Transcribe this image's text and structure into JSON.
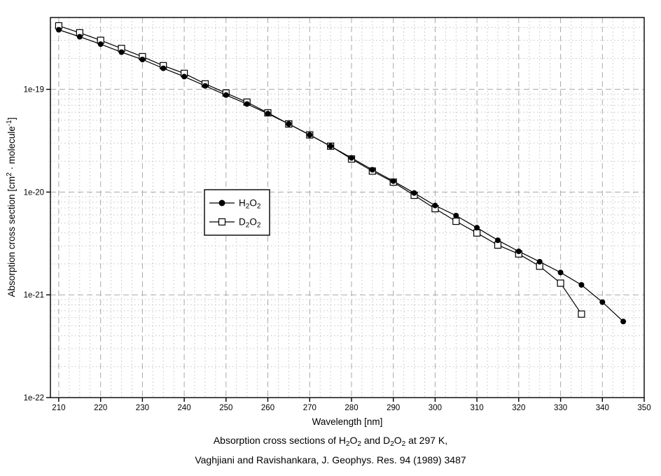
{
  "chart_data": {
    "type": "line",
    "xlabel": "Wavelength [nm]",
    "ylabel_segments": [
      {
        "t": "Absorption cross section [cm"
      },
      {
        "t": "2",
        "sup": true
      },
      {
        "t": " · molecule"
      },
      {
        "t": "-1",
        "sup": true
      },
      {
        "t": "]"
      }
    ],
    "axes": {
      "xlim": [
        208,
        350
      ],
      "ylim": [
        1e-22,
        5e-19
      ],
      "y_scale": "log",
      "x_major_step": 10,
      "x_minor_step": 2.5,
      "x_ticks": [
        210,
        220,
        230,
        240,
        250,
        260,
        270,
        280,
        290,
        300,
        310,
        320,
        330,
        340,
        350
      ],
      "y_ticks": [
        {
          "value": 1e-22,
          "label": "1e-22"
        },
        {
          "value": 1e-21,
          "label": "1e-21"
        },
        {
          "value": 1e-20,
          "label": "1e-20"
        },
        {
          "value": 1e-19,
          "label": "1e-19"
        }
      ],
      "grid": {
        "major": true,
        "minor": true
      }
    },
    "colors": {
      "series": "#000000",
      "major_grid": "#a8a8a8",
      "minor_grid": "#c2c2c2",
      "background": "#ffffff"
    },
    "legend": {
      "position": "inside-left",
      "entries": [
        {
          "id": "h2o2",
          "marker": "filled-circle",
          "label_segments": [
            {
              "t": "H"
            },
            {
              "t": "2",
              "sub": true
            },
            {
              "t": "O"
            },
            {
              "t": "2",
              "sub": true
            }
          ]
        },
        {
          "id": "d2o2",
          "marker": "open-square",
          "label_segments": [
            {
              "t": "D"
            },
            {
              "t": "2",
              "sub": true
            },
            {
              "t": "O"
            },
            {
              "t": "2",
              "sub": true
            }
          ]
        }
      ]
    },
    "series": [
      {
        "id": "h2o2",
        "name": "H2O2",
        "marker": "filled-circle",
        "x": [
          210,
          215,
          220,
          225,
          230,
          235,
          240,
          245,
          250,
          255,
          260,
          265,
          270,
          275,
          280,
          285,
          290,
          295,
          300,
          305,
          310,
          315,
          320,
          325,
          330,
          335,
          340,
          345
        ],
        "y": [
          3.8e-19,
          3.25e-19,
          2.75e-19,
          2.3e-19,
          1.95e-19,
          1.6e-19,
          1.33e-19,
          1.08e-19,
          8.8e-20,
          7.2e-20,
          5.8e-20,
          4.6e-20,
          3.6e-20,
          2.8e-20,
          2.15e-20,
          1.65e-20,
          1.28e-20,
          9.8e-21,
          7.4e-21,
          5.9e-21,
          4.5e-21,
          3.4e-21,
          2.65e-21,
          2.1e-21,
          1.65e-21,
          1.25e-21,
          8.5e-22,
          5.5e-22
        ]
      },
      {
        "id": "d2o2",
        "name": "D2O2",
        "marker": "open-square",
        "x": [
          210,
          215,
          220,
          225,
          230,
          235,
          240,
          245,
          250,
          255,
          260,
          265,
          270,
          275,
          280,
          285,
          290,
          295,
          300,
          305,
          310,
          315,
          320,
          325,
          330,
          335
        ],
        "y": [
          4.15e-19,
          3.55e-19,
          3e-19,
          2.5e-19,
          2.08e-19,
          1.7e-19,
          1.43e-19,
          1.13e-19,
          9.2e-20,
          7.5e-20,
          5.9e-20,
          4.6e-20,
          3.6e-20,
          2.8e-20,
          2.1e-20,
          1.6e-20,
          1.25e-20,
          9.3e-21,
          6.9e-21,
          5.2e-21,
          4e-21,
          3.05e-21,
          2.5e-21,
          1.9e-21,
          1.3e-21,
          6.5e-22
        ]
      }
    ]
  },
  "caption": {
    "lines": [
      [
        {
          "t": "Absorption cross sections of H"
        },
        {
          "t": "2",
          "sub": true
        },
        {
          "t": "O"
        },
        {
          "t": "2",
          "sub": true
        },
        {
          "t": " and D"
        },
        {
          "t": "2",
          "sub": true
        },
        {
          "t": "O"
        },
        {
          "t": "2",
          "sub": true
        },
        {
          "t": " at 297 K,"
        }
      ],
      [
        {
          "t": "Vaghjiani and Ravishankara, J. Geophys. Res. 94 (1989) 3487"
        }
      ]
    ]
  }
}
